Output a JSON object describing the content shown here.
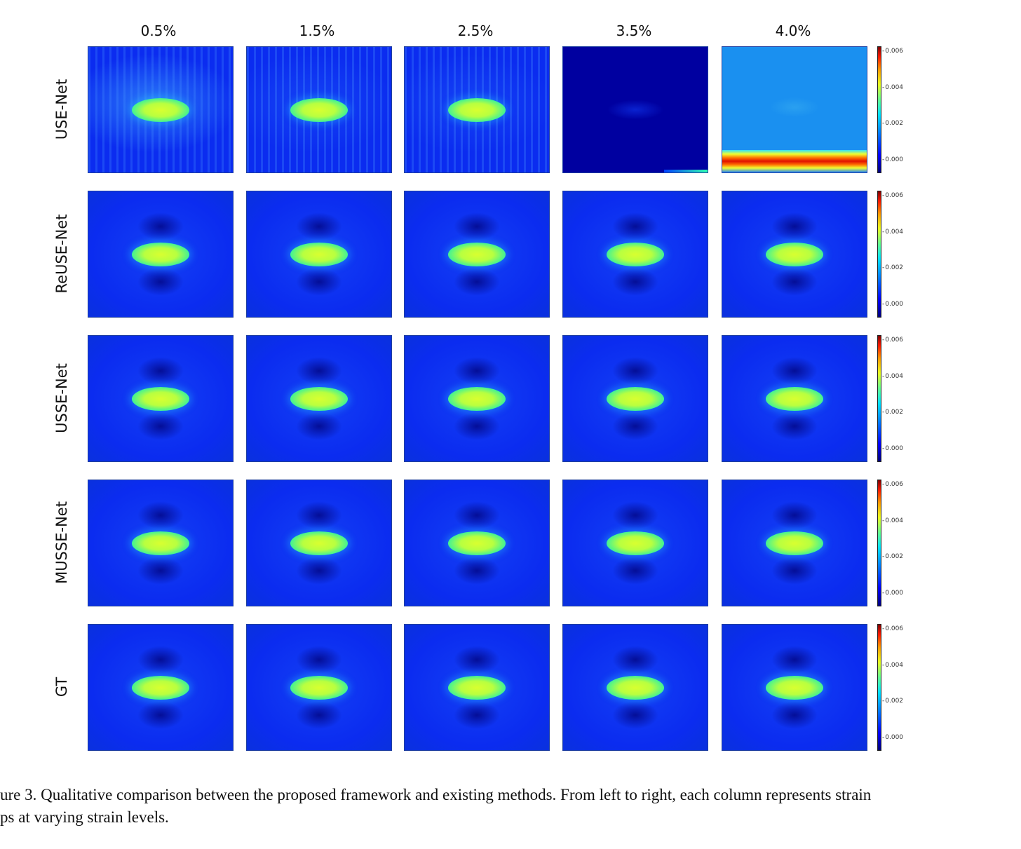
{
  "columns": [
    "0.5%",
    "1.5%",
    "2.5%",
    "3.5%",
    "4.0%"
  ],
  "rows": [
    "USE-Net",
    "ReUSE-Net",
    "USSE-Net",
    "MUSSE-Net",
    "GT"
  ],
  "colorbar_ticks": [
    "0.006",
    "0.004",
    "0.002",
    "0.000"
  ],
  "caption": {
    "line1": "ure 3. Qualitative comparison between the proposed framework and existing methods. From left to right, each column represents strain",
    "line2": "ps at varying strain levels."
  },
  "colors": {
    "background_blue": "#0b2cf0",
    "dark_blue": "#0000a0",
    "inclusion_yellow": "#d8ff30",
    "inclusion_green": "#30f0a0",
    "artifact_red": "#e01000"
  }
}
